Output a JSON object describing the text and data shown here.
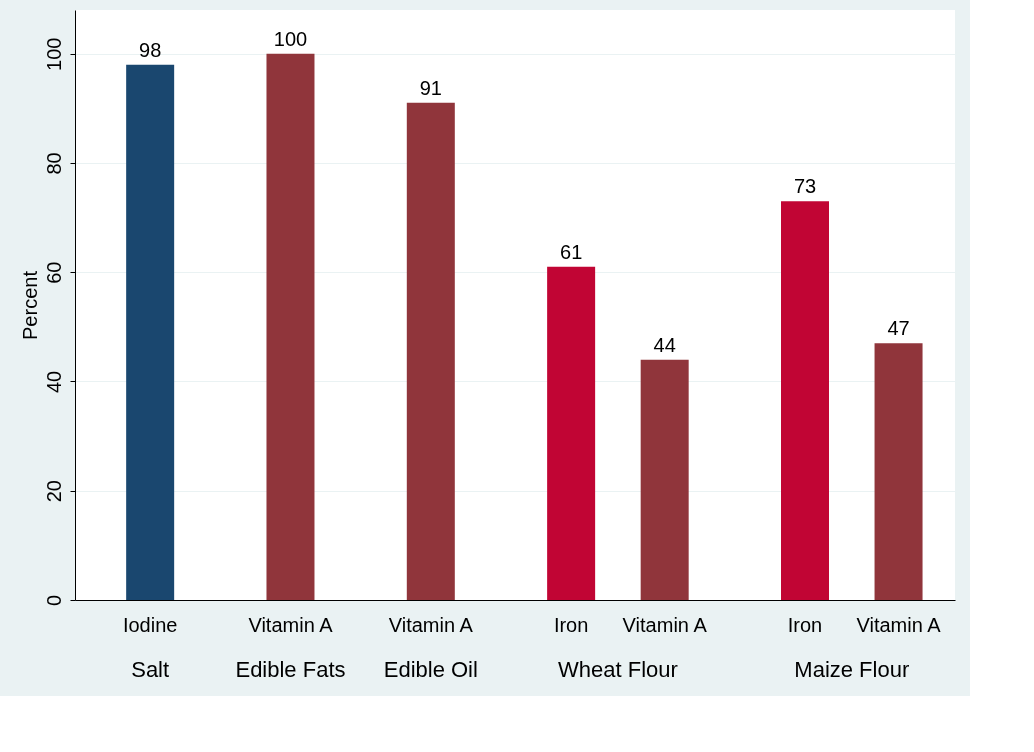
{
  "chart_data": {
    "type": "bar",
    "ylabel": "Percent",
    "categories": [
      "Iodine",
      "Vitamin A",
      "Vitamin A",
      "Iron",
      "Vitamin A",
      "Iron",
      "Vitamin A"
    ],
    "values": [
      98,
      100,
      91,
      61,
      44,
      73,
      47
    ],
    "colors": [
      "#1a476f",
      "#90353b",
      "#90353b",
      "#c10534",
      "#90353b",
      "#c10534",
      "#90353b"
    ],
    "annotations": [
      "Salt",
      "Edible Fats",
      "Edible Oil",
      "Wheat Flour",
      "Maize Flour"
    ],
    "ylim": [
      0,
      108
    ],
    "yticks": [
      0,
      20,
      40,
      60,
      80,
      100
    ],
    "grid": "y",
    "data_labels": true
  }
}
